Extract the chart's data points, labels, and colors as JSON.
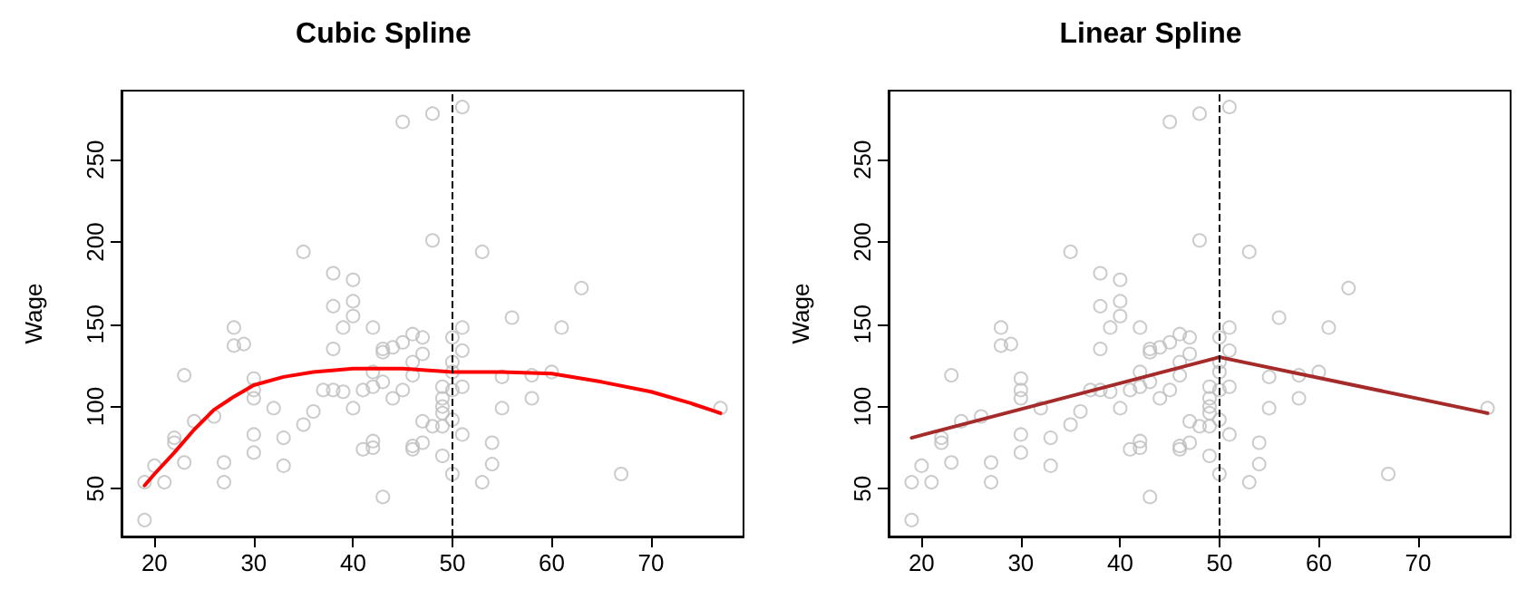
{
  "chart_data": [
    {
      "type": "scatter",
      "title": "Cubic Spline",
      "ylabel": "Wage",
      "xlim": [
        16.68,
        79.32
      ],
      "ylim": [
        21,
        292
      ],
      "xticks": [
        20,
        30,
        40,
        50,
        60,
        70
      ],
      "yticks": [
        50,
        100,
        150,
        200,
        250
      ],
      "series": [
        {
          "type": "scatter",
          "marker": "circle",
          "color": "#bebebe",
          "x": [
            19,
            19,
            20,
            21,
            22,
            22,
            23,
            23,
            24,
            26,
            27,
            27,
            28,
            28,
            29,
            30,
            30,
            30,
            30,
            30,
            32,
            33,
            33,
            35,
            35,
            36,
            37,
            38,
            38,
            38,
            38,
            39,
            39,
            40,
            40,
            40,
            40,
            41,
            41,
            42,
            42,
            42,
            42,
            42,
            43,
            43,
            43,
            43,
            44,
            44,
            45,
            45,
            45,
            46,
            46,
            46,
            46,
            46,
            47,
            47,
            47,
            47,
            48,
            48,
            48,
            49,
            49,
            49,
            49,
            49,
            49,
            50,
            50,
            50,
            50,
            50,
            50,
            51,
            51,
            51,
            51,
            51,
            53,
            53,
            54,
            54,
            55,
            55,
            56,
            58,
            58,
            60,
            61,
            63,
            67,
            77
          ],
          "values": [
            31,
            54,
            64,
            54,
            81,
            78,
            119,
            66,
            91,
            94,
            66,
            54,
            148,
            137,
            138,
            117,
            110,
            105,
            83,
            72,
            99,
            81,
            64,
            194,
            89,
            97,
            110,
            181,
            161,
            135,
            110,
            148,
            109,
            177,
            164,
            155,
            99,
            110,
            74,
            148,
            121,
            112,
            79,
            75,
            135,
            133,
            115,
            45,
            136,
            105,
            273,
            139,
            110,
            144,
            127,
            119,
            74,
            76,
            142,
            132,
            91,
            78,
            278,
            201,
            88,
            112,
            105,
            100,
            96,
            88,
            70,
            142,
            127,
            121,
            110,
            92,
            59,
            282,
            148,
            134,
            112,
            83,
            194,
            54,
            78,
            65,
            118,
            99,
            154,
            119,
            105,
            121,
            148,
            172,
            59,
            99
          ]
        },
        {
          "type": "line",
          "marker": "none",
          "color": "#ff0000",
          "x": [
            19,
            20,
            22,
            24,
            26,
            28,
            30,
            33,
            36,
            40,
            45,
            50,
            55,
            60,
            65,
            70,
            74,
            77
          ],
          "values": [
            52,
            59,
            72,
            86,
            98,
            106,
            113,
            118,
            121,
            123,
            123,
            121,
            121,
            120,
            115,
            109,
            102,
            96
          ]
        }
      ],
      "ref_lines": [
        {
          "axis": "x",
          "value": 50,
          "color": "#000000",
          "line_style": "dashed"
        }
      ]
    },
    {
      "type": "scatter",
      "title": "Linear Spline",
      "ylabel": "Wage",
      "xlim": [
        16.68,
        79.32
      ],
      "ylim": [
        21,
        292
      ],
      "xticks": [
        20,
        30,
        40,
        50,
        60,
        70
      ],
      "yticks": [
        50,
        100,
        150,
        200,
        250
      ],
      "series": [
        {
          "type": "scatter",
          "marker": "circle",
          "color": "#bebebe",
          "x": [
            19,
            19,
            20,
            21,
            22,
            22,
            23,
            23,
            24,
            26,
            27,
            27,
            28,
            28,
            29,
            30,
            30,
            30,
            30,
            30,
            32,
            33,
            33,
            35,
            35,
            36,
            37,
            38,
            38,
            38,
            38,
            39,
            39,
            40,
            40,
            40,
            40,
            41,
            41,
            42,
            42,
            42,
            42,
            42,
            43,
            43,
            43,
            43,
            44,
            44,
            45,
            45,
            45,
            46,
            46,
            46,
            46,
            46,
            47,
            47,
            47,
            47,
            48,
            48,
            48,
            49,
            49,
            49,
            49,
            49,
            49,
            50,
            50,
            50,
            50,
            50,
            50,
            51,
            51,
            51,
            51,
            51,
            53,
            53,
            54,
            54,
            55,
            55,
            56,
            58,
            58,
            60,
            61,
            63,
            67,
            77
          ],
          "values": [
            31,
            54,
            64,
            54,
            81,
            78,
            119,
            66,
            91,
            94,
            66,
            54,
            148,
            137,
            138,
            117,
            110,
            105,
            83,
            72,
            99,
            81,
            64,
            194,
            89,
            97,
            110,
            181,
            161,
            135,
            110,
            148,
            109,
            177,
            164,
            155,
            99,
            110,
            74,
            148,
            121,
            112,
            79,
            75,
            135,
            133,
            115,
            45,
            136,
            105,
            273,
            139,
            110,
            144,
            127,
            119,
            74,
            76,
            142,
            132,
            91,
            78,
            278,
            201,
            88,
            112,
            105,
            100,
            96,
            88,
            70,
            142,
            127,
            121,
            110,
            92,
            59,
            282,
            148,
            134,
            112,
            83,
            194,
            54,
            78,
            65,
            118,
            99,
            154,
            119,
            105,
            121,
            148,
            172,
            59,
            99
          ]
        },
        {
          "type": "line",
          "marker": "none",
          "color": "#a52a2a",
          "x": [
            19,
            50,
            77
          ],
          "values": [
            81,
            130,
            96
          ]
        }
      ],
      "ref_lines": [
        {
          "axis": "x",
          "value": 50,
          "color": "#000000",
          "line_style": "dashed"
        }
      ]
    }
  ]
}
